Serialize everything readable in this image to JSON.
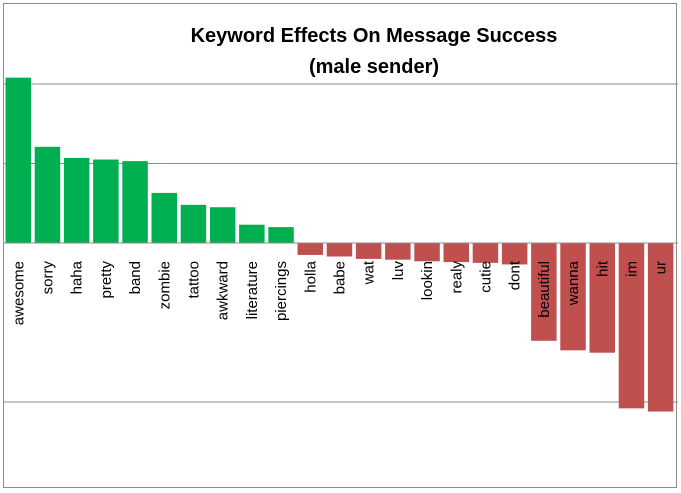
{
  "chart_data": {
    "type": "bar",
    "title": "Keyword Effects On Message Success",
    "subtitle": "(male sender)",
    "categories": [
      "awesome",
      "sorry",
      "haha",
      "pretty",
      "band",
      "zombie",
      "tattoo",
      "awkward",
      "literature",
      "piercings",
      "holla",
      "babe",
      "wat",
      "luv",
      "lookin",
      "realy",
      "cutie",
      "dont",
      "beautiful",
      "wanna",
      "hit",
      "im",
      "ur"
    ],
    "values": [
      2.08,
      1.21,
      1.07,
      1.05,
      1.03,
      0.63,
      0.48,
      0.45,
      0.23,
      0.2,
      -0.15,
      -0.17,
      -0.2,
      -0.21,
      -0.23,
      -0.24,
      -0.25,
      -0.27,
      -1.23,
      -1.35,
      -1.38,
      -2.08,
      -2.12
    ],
    "ylim": [
      -3,
      2
    ],
    "y_gridlines": [
      -2,
      1,
      2
    ],
    "grid": true,
    "colors": {
      "positive": "#00b050",
      "negative": "#c0504d",
      "grid": "#8c8c8c"
    }
  }
}
